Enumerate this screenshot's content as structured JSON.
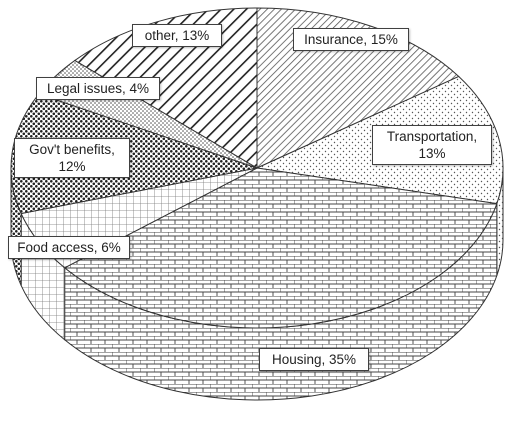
{
  "chart_data": {
    "type": "pie",
    "title": "",
    "style": "3d-patterned",
    "slices": [
      {
        "label": "Insurance",
        "value": 15,
        "text": "Insurance, 15%",
        "pattern": "diagonal-dense"
      },
      {
        "label": "Transportation",
        "value": 13,
        "text_lines": [
          "Transportation,",
          "13%"
        ],
        "pattern": "dots-fine"
      },
      {
        "label": "Housing",
        "value": 35,
        "text": "Housing, 35%",
        "pattern": "brick"
      },
      {
        "label": "Food access",
        "value": 6,
        "text": "Food access, 6%",
        "pattern": "grid"
      },
      {
        "label": "Gov't benefits",
        "value": 12,
        "text_lines": [
          "Gov't benefits,",
          "12%"
        ],
        "pattern": "dots-heavy"
      },
      {
        "label": "Legal issues",
        "value": 4,
        "text": "Legal issues, 4%",
        "pattern": "dots-light"
      },
      {
        "label": "other",
        "value": 13,
        "text": "other, 13%",
        "pattern": "diagonal-wide"
      }
    ],
    "colors": {
      "ink": "#333333",
      "background": "#ffffff",
      "label_border": "#404040"
    }
  }
}
